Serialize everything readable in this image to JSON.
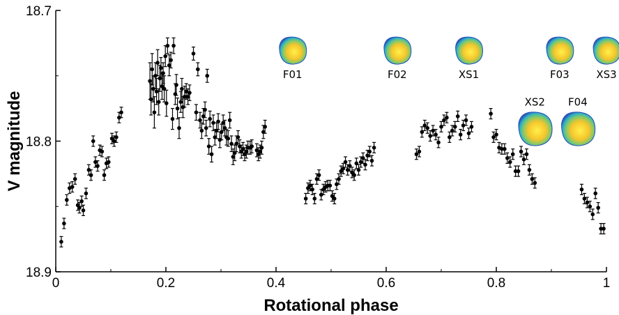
{
  "chart_data": {
    "type": "scatter",
    "xlabel": "Rotational phase",
    "ylabel": "V magnitude",
    "xlim": [
      0,
      1
    ],
    "ylim": [
      18.9,
      18.7
    ],
    "y_inverted": true,
    "x_ticks": [
      0,
      0.2,
      0.4,
      0.6,
      0.8,
      1
    ],
    "x_tick_labels": [
      "0",
      "0.2",
      "0.4",
      "0.6",
      "0.8",
      "1"
    ],
    "y_ticks": [
      18.7,
      18.8,
      18.9
    ],
    "y_tick_labels": [
      "18.7",
      "18.8",
      "18.9"
    ],
    "grid": false,
    "marker": "filled-circle-with-error-bars",
    "colors": {
      "points": "#000000",
      "axes": "#000000"
    },
    "points": [
      {
        "x": 0.01,
        "y": 18.877,
        "err": 0.004
      },
      {
        "x": 0.015,
        "y": 18.863,
        "err": 0.004
      },
      {
        "x": 0.02,
        "y": 18.845,
        "err": 0.004
      },
      {
        "x": 0.025,
        "y": 18.836,
        "err": 0.004
      },
      {
        "x": 0.03,
        "y": 18.835,
        "err": 0.004
      },
      {
        "x": 0.035,
        "y": 18.829,
        "err": 0.004
      },
      {
        "x": 0.04,
        "y": 18.849,
        "err": 0.004
      },
      {
        "x": 0.043,
        "y": 18.851,
        "err": 0.004
      },
      {
        "x": 0.047,
        "y": 18.846,
        "err": 0.004
      },
      {
        "x": 0.05,
        "y": 18.853,
        "err": 0.004
      },
      {
        "x": 0.055,
        "y": 18.84,
        "err": 0.004
      },
      {
        "x": 0.06,
        "y": 18.822,
        "err": 0.004
      },
      {
        "x": 0.064,
        "y": 18.826,
        "err": 0.004
      },
      {
        "x": 0.068,
        "y": 18.8,
        "err": 0.004
      },
      {
        "x": 0.072,
        "y": 18.816,
        "err": 0.004
      },
      {
        "x": 0.076,
        "y": 18.819,
        "err": 0.004
      },
      {
        "x": 0.08,
        "y": 18.807,
        "err": 0.004
      },
      {
        "x": 0.084,
        "y": 18.808,
        "err": 0.004
      },
      {
        "x": 0.088,
        "y": 18.826,
        "err": 0.004
      },
      {
        "x": 0.092,
        "y": 18.817,
        "err": 0.004
      },
      {
        "x": 0.096,
        "y": 18.816,
        "err": 0.004
      },
      {
        "x": 0.102,
        "y": 18.798,
        "err": 0.004
      },
      {
        "x": 0.106,
        "y": 18.8,
        "err": 0.004
      },
      {
        "x": 0.11,
        "y": 18.797,
        "err": 0.004
      },
      {
        "x": 0.115,
        "y": 18.782,
        "err": 0.004
      },
      {
        "x": 0.119,
        "y": 18.778,
        "err": 0.004
      },
      {
        "x": 0.171,
        "y": 18.754,
        "err": 0.014
      },
      {
        "x": 0.173,
        "y": 18.768,
        "err": 0.012
      },
      {
        "x": 0.175,
        "y": 18.745,
        "err": 0.012
      },
      {
        "x": 0.177,
        "y": 18.76,
        "err": 0.01
      },
      {
        "x": 0.179,
        "y": 18.778,
        "err": 0.012
      },
      {
        "x": 0.181,
        "y": 18.75,
        "err": 0.01
      },
      {
        "x": 0.183,
        "y": 18.762,
        "err": 0.01
      },
      {
        "x": 0.185,
        "y": 18.74,
        "err": 0.01
      },
      {
        "x": 0.187,
        "y": 18.77,
        "err": 0.01
      },
      {
        "x": 0.189,
        "y": 18.752,
        "err": 0.01
      },
      {
        "x": 0.191,
        "y": 18.744,
        "err": 0.008
      },
      {
        "x": 0.193,
        "y": 18.758,
        "err": 0.01
      },
      {
        "x": 0.195,
        "y": 18.748,
        "err": 0.008
      },
      {
        "x": 0.197,
        "y": 18.76,
        "err": 0.01
      },
      {
        "x": 0.199,
        "y": 18.735,
        "err": 0.008
      },
      {
        "x": 0.201,
        "y": 18.771,
        "err": 0.01
      },
      {
        "x": 0.203,
        "y": 18.727,
        "err": 0.006
      },
      {
        "x": 0.206,
        "y": 18.742,
        "err": 0.008
      },
      {
        "x": 0.209,
        "y": 18.738,
        "err": 0.006
      },
      {
        "x": 0.212,
        "y": 18.783,
        "err": 0.008
      },
      {
        "x": 0.214,
        "y": 18.727,
        "err": 0.006
      },
      {
        "x": 0.217,
        "y": 18.764,
        "err": 0.008
      },
      {
        "x": 0.219,
        "y": 18.757,
        "err": 0.008
      },
      {
        "x": 0.221,
        "y": 18.775,
        "err": 0.008
      },
      {
        "x": 0.224,
        "y": 18.79,
        "err": 0.008
      },
      {
        "x": 0.227,
        "y": 18.77,
        "err": 0.008
      },
      {
        "x": 0.229,
        "y": 18.76,
        "err": 0.008
      },
      {
        "x": 0.231,
        "y": 18.774,
        "err": 0.008
      },
      {
        "x": 0.234,
        "y": 18.766,
        "err": 0.008
      },
      {
        "x": 0.237,
        "y": 18.762,
        "err": 0.006
      },
      {
        "x": 0.24,
        "y": 18.766,
        "err": 0.006
      },
      {
        "x": 0.243,
        "y": 18.763,
        "err": 0.006
      },
      {
        "x": 0.25,
        "y": 18.733,
        "err": 0.005
      },
      {
        "x": 0.255,
        "y": 18.778,
        "err": 0.006
      },
      {
        "x": 0.258,
        "y": 18.745,
        "err": 0.005
      },
      {
        "x": 0.262,
        "y": 18.784,
        "err": 0.006
      },
      {
        "x": 0.265,
        "y": 18.792,
        "err": 0.006
      },
      {
        "x": 0.268,
        "y": 18.781,
        "err": 0.006
      },
      {
        "x": 0.271,
        "y": 18.776,
        "err": 0.006
      },
      {
        "x": 0.273,
        "y": 18.79,
        "err": 0.006
      },
      {
        "x": 0.275,
        "y": 18.75,
        "err": 0.005
      },
      {
        "x": 0.278,
        "y": 18.804,
        "err": 0.006
      },
      {
        "x": 0.28,
        "y": 18.783,
        "err": 0.006
      },
      {
        "x": 0.283,
        "y": 18.81,
        "err": 0.006
      },
      {
        "x": 0.286,
        "y": 18.786,
        "err": 0.006
      },
      {
        "x": 0.289,
        "y": 18.797,
        "err": 0.006
      },
      {
        "x": 0.292,
        "y": 18.792,
        "err": 0.006
      },
      {
        "x": 0.295,
        "y": 18.785,
        "err": 0.006
      },
      {
        "x": 0.298,
        "y": 18.799,
        "err": 0.006
      },
      {
        "x": 0.301,
        "y": 18.793,
        "err": 0.006
      },
      {
        "x": 0.304,
        "y": 18.786,
        "err": 0.006
      },
      {
        "x": 0.307,
        "y": 18.79,
        "err": 0.006
      },
      {
        "x": 0.31,
        "y": 18.797,
        "err": 0.006
      },
      {
        "x": 0.313,
        "y": 18.798,
        "err": 0.006
      },
      {
        "x": 0.316,
        "y": 18.784,
        "err": 0.006
      },
      {
        "x": 0.319,
        "y": 18.802,
        "err": 0.006
      },
      {
        "x": 0.322,
        "y": 18.812,
        "err": 0.006
      },
      {
        "x": 0.325,
        "y": 18.809,
        "err": 0.006
      },
      {
        "x": 0.328,
        "y": 18.802,
        "err": 0.006
      },
      {
        "x": 0.331,
        "y": 18.797,
        "err": 0.005
      },
      {
        "x": 0.334,
        "y": 18.804,
        "err": 0.005
      },
      {
        "x": 0.337,
        "y": 18.808,
        "err": 0.005
      },
      {
        "x": 0.34,
        "y": 18.806,
        "err": 0.005
      },
      {
        "x": 0.343,
        "y": 18.81,
        "err": 0.005
      },
      {
        "x": 0.346,
        "y": 18.808,
        "err": 0.005
      },
      {
        "x": 0.349,
        "y": 18.805,
        "err": 0.005
      },
      {
        "x": 0.353,
        "y": 18.805,
        "err": 0.005
      },
      {
        "x": 0.356,
        "y": 18.804,
        "err": 0.005
      },
      {
        "x": 0.365,
        "y": 18.807,
        "err": 0.005
      },
      {
        "x": 0.368,
        "y": 18.81,
        "err": 0.005
      },
      {
        "x": 0.371,
        "y": 18.808,
        "err": 0.005
      },
      {
        "x": 0.374,
        "y": 18.805,
        "err": 0.005
      },
      {
        "x": 0.377,
        "y": 18.793,
        "err": 0.005
      },
      {
        "x": 0.38,
        "y": 18.789,
        "err": 0.005
      },
      {
        "x": 0.454,
        "y": 18.844,
        "err": 0.004
      },
      {
        "x": 0.458,
        "y": 18.836,
        "err": 0.004
      },
      {
        "x": 0.462,
        "y": 18.834,
        "err": 0.004
      },
      {
        "x": 0.466,
        "y": 18.837,
        "err": 0.004
      },
      {
        "x": 0.47,
        "y": 18.844,
        "err": 0.004
      },
      {
        "x": 0.474,
        "y": 18.829,
        "err": 0.004
      },
      {
        "x": 0.478,
        "y": 18.826,
        "err": 0.004
      },
      {
        "x": 0.482,
        "y": 18.841,
        "err": 0.004
      },
      {
        "x": 0.486,
        "y": 18.837,
        "err": 0.004
      },
      {
        "x": 0.49,
        "y": 18.835,
        "err": 0.004
      },
      {
        "x": 0.494,
        "y": 18.834,
        "err": 0.004
      },
      {
        "x": 0.498,
        "y": 18.834,
        "err": 0.004
      },
      {
        "x": 0.502,
        "y": 18.842,
        "err": 0.004
      },
      {
        "x": 0.506,
        "y": 18.844,
        "err": 0.004
      },
      {
        "x": 0.51,
        "y": 18.833,
        "err": 0.004
      },
      {
        "x": 0.514,
        "y": 18.829,
        "err": 0.004
      },
      {
        "x": 0.518,
        "y": 18.823,
        "err": 0.004
      },
      {
        "x": 0.522,
        "y": 18.821,
        "err": 0.004
      },
      {
        "x": 0.526,
        "y": 18.816,
        "err": 0.004
      },
      {
        "x": 0.53,
        "y": 18.822,
        "err": 0.004
      },
      {
        "x": 0.534,
        "y": 18.819,
        "err": 0.004
      },
      {
        "x": 0.538,
        "y": 18.824,
        "err": 0.004
      },
      {
        "x": 0.542,
        "y": 18.826,
        "err": 0.004
      },
      {
        "x": 0.546,
        "y": 18.817,
        "err": 0.004
      },
      {
        "x": 0.55,
        "y": 18.822,
        "err": 0.004
      },
      {
        "x": 0.554,
        "y": 18.816,
        "err": 0.004
      },
      {
        "x": 0.558,
        "y": 18.813,
        "err": 0.004
      },
      {
        "x": 0.562,
        "y": 18.818,
        "err": 0.004
      },
      {
        "x": 0.566,
        "y": 18.811,
        "err": 0.004
      },
      {
        "x": 0.57,
        "y": 18.808,
        "err": 0.004
      },
      {
        "x": 0.574,
        "y": 18.815,
        "err": 0.004
      },
      {
        "x": 0.578,
        "y": 18.805,
        "err": 0.004
      },
      {
        "x": 0.655,
        "y": 18.81,
        "err": 0.004
      },
      {
        "x": 0.66,
        "y": 18.808,
        "err": 0.004
      },
      {
        "x": 0.665,
        "y": 18.793,
        "err": 0.004
      },
      {
        "x": 0.67,
        "y": 18.788,
        "err": 0.004
      },
      {
        "x": 0.675,
        "y": 18.79,
        "err": 0.004
      },
      {
        "x": 0.68,
        "y": 18.796,
        "err": 0.004
      },
      {
        "x": 0.685,
        "y": 18.792,
        "err": 0.004
      },
      {
        "x": 0.69,
        "y": 18.795,
        "err": 0.004
      },
      {
        "x": 0.695,
        "y": 18.801,
        "err": 0.004
      },
      {
        "x": 0.7,
        "y": 18.789,
        "err": 0.004
      },
      {
        "x": 0.705,
        "y": 18.784,
        "err": 0.004
      },
      {
        "x": 0.71,
        "y": 18.782,
        "err": 0.004
      },
      {
        "x": 0.715,
        "y": 18.797,
        "err": 0.004
      },
      {
        "x": 0.72,
        "y": 18.792,
        "err": 0.004
      },
      {
        "x": 0.725,
        "y": 18.789,
        "err": 0.004
      },
      {
        "x": 0.73,
        "y": 18.781,
        "err": 0.004
      },
      {
        "x": 0.735,
        "y": 18.795,
        "err": 0.004
      },
      {
        "x": 0.74,
        "y": 18.788,
        "err": 0.004
      },
      {
        "x": 0.745,
        "y": 18.784,
        "err": 0.004
      },
      {
        "x": 0.75,
        "y": 18.794,
        "err": 0.004
      },
      {
        "x": 0.755,
        "y": 18.789,
        "err": 0.004
      },
      {
        "x": 0.79,
        "y": 18.779,
        "err": 0.004
      },
      {
        "x": 0.795,
        "y": 18.797,
        "err": 0.004
      },
      {
        "x": 0.8,
        "y": 18.795,
        "err": 0.004
      },
      {
        "x": 0.805,
        "y": 18.805,
        "err": 0.004
      },
      {
        "x": 0.81,
        "y": 18.806,
        "err": 0.004
      },
      {
        "x": 0.815,
        "y": 18.806,
        "err": 0.004
      },
      {
        "x": 0.82,
        "y": 18.813,
        "err": 0.004
      },
      {
        "x": 0.825,
        "y": 18.816,
        "err": 0.004
      },
      {
        "x": 0.83,
        "y": 18.81,
        "err": 0.004
      },
      {
        "x": 0.835,
        "y": 18.823,
        "err": 0.004
      },
      {
        "x": 0.84,
        "y": 18.823,
        "err": 0.004
      },
      {
        "x": 0.845,
        "y": 18.808,
        "err": 0.004
      },
      {
        "x": 0.85,
        "y": 18.814,
        "err": 0.004
      },
      {
        "x": 0.855,
        "y": 18.81,
        "err": 0.004
      },
      {
        "x": 0.86,
        "y": 18.822,
        "err": 0.004
      },
      {
        "x": 0.865,
        "y": 18.829,
        "err": 0.004
      },
      {
        "x": 0.87,
        "y": 18.832,
        "err": 0.004
      },
      {
        "x": 0.955,
        "y": 18.837,
        "err": 0.004
      },
      {
        "x": 0.96,
        "y": 18.844,
        "err": 0.004
      },
      {
        "x": 0.965,
        "y": 18.847,
        "err": 0.004
      },
      {
        "x": 0.97,
        "y": 18.85,
        "err": 0.004
      },
      {
        "x": 0.975,
        "y": 18.856,
        "err": 0.004
      },
      {
        "x": 0.98,
        "y": 18.84,
        "err": 0.004
      },
      {
        "x": 0.985,
        "y": 18.851,
        "err": 0.004
      },
      {
        "x": 0.99,
        "y": 18.867,
        "err": 0.004
      },
      {
        "x": 0.995,
        "y": 18.867,
        "err": 0.004
      }
    ],
    "annotations": [
      {
        "label": "F01",
        "x": 0.43,
        "y": 18.715
      },
      {
        "label": "F02",
        "x": 0.62,
        "y": 18.715
      },
      {
        "label": "XS1",
        "x": 0.75,
        "y": 18.715
      },
      {
        "label": "F03",
        "x": 0.915,
        "y": 18.715
      },
      {
        "label": "XS3",
        "x": 1.0,
        "y": 18.715
      },
      {
        "label": "XS2",
        "x": 0.87,
        "y": 18.775
      },
      {
        "label": "F04",
        "x": 0.948,
        "y": 18.775
      }
    ]
  }
}
